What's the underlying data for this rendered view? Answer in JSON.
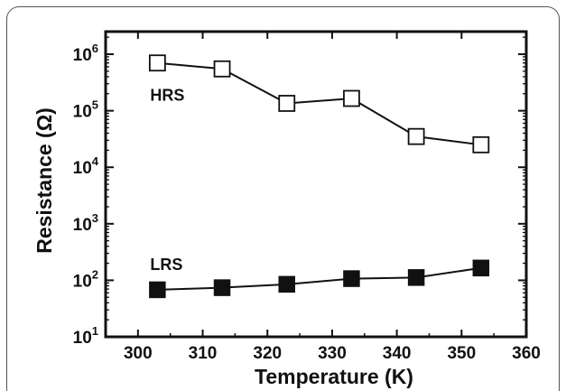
{
  "chart_data": {
    "type": "scatter",
    "xlabel": "Temperature (K)",
    "ylabel": "Resistance (Ω)",
    "xlim": [
      295,
      360
    ],
    "ylim": [
      1,
      6.4
    ],
    "y_scale": "log",
    "x_ticks": [
      "300",
      "310",
      "320",
      "330",
      "340",
      "350",
      "360"
    ],
    "x_tick_values": [
      300,
      310,
      320,
      330,
      340,
      350,
      360
    ],
    "y_ticks": [
      {
        "base": "10",
        "exp": "1",
        "value": 1
      },
      {
        "base": "10",
        "exp": "2",
        "value": 2
      },
      {
        "base": "10",
        "exp": "3",
        "value": 3
      },
      {
        "base": "10",
        "exp": "4",
        "value": 4
      },
      {
        "base": "10",
        "exp": "5",
        "value": 5
      },
      {
        "base": "10",
        "exp": "6",
        "value": 6
      }
    ],
    "grid": false,
    "series": [
      {
        "name": "HRS",
        "marker": "open-square",
        "x": [
          303,
          313,
          323,
          333,
          343,
          353
        ],
        "y": [
          700000,
          550000,
          135000,
          165000,
          35000,
          25000
        ]
      },
      {
        "name": "LRS",
        "marker": "filled-square",
        "x": [
          303,
          313,
          323,
          333,
          343,
          353
        ],
        "y": [
          68,
          74,
          85,
          107,
          112,
          165
        ]
      }
    ]
  }
}
